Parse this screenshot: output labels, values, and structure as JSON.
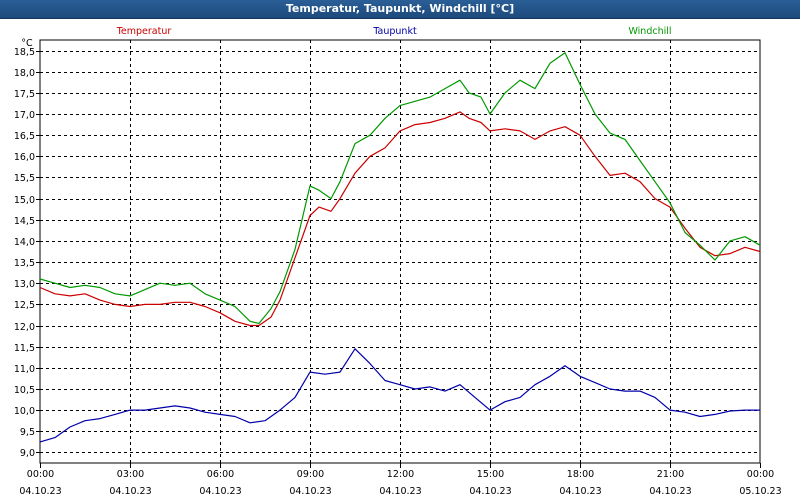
{
  "window": {
    "title": "Temperatur, Taupunkt, Windchill [°C]"
  },
  "chart_data": {
    "type": "line",
    "title": "Temperatur, Taupunkt, Windchill [°C]",
    "ylabel": "°C",
    "ylim": [
      8.75,
      18.75
    ],
    "y_ticks": [
      9.0,
      9.5,
      10.0,
      10.5,
      11.0,
      11.5,
      12.0,
      12.5,
      13.0,
      13.5,
      14.0,
      14.5,
      15.0,
      15.5,
      16.0,
      16.5,
      17.0,
      17.5,
      18.0,
      18.5
    ],
    "y_tick_labels": [
      "9,0",
      "9,5",
      "10,0",
      "10,5",
      "11,0",
      "11,5",
      "12,0",
      "12,5",
      "13,0",
      "13,5",
      "14,0",
      "14,5",
      "15,0",
      "15,5",
      "16,0",
      "16,5",
      "17,0",
      "17,5",
      "18,0",
      "18,5"
    ],
    "xlim": [
      0,
      24
    ],
    "x_ticks": [
      0,
      3,
      6,
      9,
      12,
      15,
      18,
      21,
      24
    ],
    "x_tick_labels": [
      {
        "time": "00:00",
        "date": "04.10.23"
      },
      {
        "time": "03:00",
        "date": "04.10.23"
      },
      {
        "time": "06:00",
        "date": "04.10.23"
      },
      {
        "time": "09:00",
        "date": "04.10.23"
      },
      {
        "time": "12:00",
        "date": "04.10.23"
      },
      {
        "time": "15:00",
        "date": "04.10.23"
      },
      {
        "time": "18:00",
        "date": "04.10.23"
      },
      {
        "time": "21:00",
        "date": "04.10.23"
      },
      {
        "time": "00:00",
        "date": "05.10.23"
      }
    ],
    "grid": true,
    "legend_position": "top",
    "series": [
      {
        "name": "Temperatur",
        "color": "#cc0000",
        "points": [
          [
            0,
            12.9
          ],
          [
            0.5,
            12.75
          ],
          [
            1,
            12.7
          ],
          [
            1.5,
            12.75
          ],
          [
            2,
            12.6
          ],
          [
            2.5,
            12.5
          ],
          [
            3,
            12.45
          ],
          [
            3.5,
            12.5
          ],
          [
            4,
            12.5
          ],
          [
            4.5,
            12.55
          ],
          [
            5,
            12.55
          ],
          [
            5.5,
            12.45
          ],
          [
            6,
            12.3
          ],
          [
            6.5,
            12.1
          ],
          [
            7,
            12.0
          ],
          [
            7.3,
            12.0
          ],
          [
            7.7,
            12.2
          ],
          [
            8,
            12.6
          ],
          [
            8.5,
            13.6
          ],
          [
            9,
            14.6
          ],
          [
            9.3,
            14.8
          ],
          [
            9.7,
            14.7
          ],
          [
            10,
            15.0
          ],
          [
            10.5,
            15.6
          ],
          [
            11,
            16.0
          ],
          [
            11.5,
            16.2
          ],
          [
            12,
            16.6
          ],
          [
            12.5,
            16.75
          ],
          [
            13,
            16.8
          ],
          [
            13.5,
            16.9
          ],
          [
            14,
            17.05
          ],
          [
            14.3,
            16.9
          ],
          [
            14.7,
            16.8
          ],
          [
            15,
            16.6
          ],
          [
            15.5,
            16.65
          ],
          [
            16,
            16.6
          ],
          [
            16.5,
            16.4
          ],
          [
            17,
            16.6
          ],
          [
            17.5,
            16.7
          ],
          [
            18,
            16.5
          ],
          [
            18.5,
            16.0
          ],
          [
            19,
            15.55
          ],
          [
            19.5,
            15.6
          ],
          [
            20,
            15.4
          ],
          [
            20.5,
            15.0
          ],
          [
            21,
            14.8
          ],
          [
            21.5,
            14.3
          ],
          [
            22,
            13.85
          ],
          [
            22.5,
            13.65
          ],
          [
            23,
            13.7
          ],
          [
            23.5,
            13.85
          ],
          [
            24,
            13.75
          ]
        ]
      },
      {
        "name": "Taupunkt",
        "color": "#0000aa",
        "points": [
          [
            0,
            9.25
          ],
          [
            0.5,
            9.35
          ],
          [
            1,
            9.6
          ],
          [
            1.5,
            9.75
          ],
          [
            2,
            9.8
          ],
          [
            2.5,
            9.9
          ],
          [
            3,
            10.0
          ],
          [
            3.5,
            10.0
          ],
          [
            4,
            10.05
          ],
          [
            4.5,
            10.1
          ],
          [
            5,
            10.05
          ],
          [
            5.5,
            9.95
          ],
          [
            6,
            9.9
          ],
          [
            6.5,
            9.85
          ],
          [
            7,
            9.7
          ],
          [
            7.5,
            9.75
          ],
          [
            8,
            10.0
          ],
          [
            8.5,
            10.3
          ],
          [
            9,
            10.9
          ],
          [
            9.5,
            10.85
          ],
          [
            10,
            10.9
          ],
          [
            10.5,
            11.45
          ],
          [
            11,
            11.1
          ],
          [
            11.5,
            10.7
          ],
          [
            12,
            10.6
          ],
          [
            12.5,
            10.5
          ],
          [
            13,
            10.55
          ],
          [
            13.5,
            10.45
          ],
          [
            14,
            10.6
          ],
          [
            14.5,
            10.3
          ],
          [
            15,
            10.0
          ],
          [
            15.5,
            10.2
          ],
          [
            16,
            10.3
          ],
          [
            16.5,
            10.6
          ],
          [
            17,
            10.8
          ],
          [
            17.5,
            11.05
          ],
          [
            18,
            10.8
          ],
          [
            18.5,
            10.65
          ],
          [
            19,
            10.5
          ],
          [
            19.5,
            10.45
          ],
          [
            20,
            10.45
          ],
          [
            20.5,
            10.3
          ],
          [
            21,
            10.0
          ],
          [
            21.5,
            9.95
          ],
          [
            22,
            9.85
          ],
          [
            22.5,
            9.9
          ],
          [
            23,
            9.98
          ],
          [
            23.5,
            10.0
          ],
          [
            24,
            10.0
          ]
        ]
      },
      {
        "name": "Windchill",
        "color": "#009900",
        "points": [
          [
            0,
            13.1
          ],
          [
            0.5,
            13.0
          ],
          [
            1,
            12.9
          ],
          [
            1.5,
            12.95
          ],
          [
            2,
            12.9
          ],
          [
            2.5,
            12.75
          ],
          [
            3,
            12.7
          ],
          [
            3.5,
            12.85
          ],
          [
            4,
            13.0
          ],
          [
            4.5,
            12.95
          ],
          [
            5,
            13.0
          ],
          [
            5.5,
            12.75
          ],
          [
            6,
            12.6
          ],
          [
            6.5,
            12.45
          ],
          [
            7,
            12.1
          ],
          [
            7.3,
            12.05
          ],
          [
            7.7,
            12.4
          ],
          [
            8,
            12.8
          ],
          [
            8.5,
            13.8
          ],
          [
            9,
            15.3
          ],
          [
            9.3,
            15.2
          ],
          [
            9.7,
            15.0
          ],
          [
            10,
            15.4
          ],
          [
            10.5,
            16.3
          ],
          [
            11,
            16.5
          ],
          [
            11.5,
            16.9
          ],
          [
            12,
            17.2
          ],
          [
            12.5,
            17.3
          ],
          [
            13,
            17.4
          ],
          [
            13.5,
            17.6
          ],
          [
            14,
            17.8
          ],
          [
            14.3,
            17.5
          ],
          [
            14.7,
            17.4
          ],
          [
            15,
            17.0
          ],
          [
            15.5,
            17.5
          ],
          [
            16,
            17.8
          ],
          [
            16.5,
            17.6
          ],
          [
            17,
            18.2
          ],
          [
            17.5,
            18.45
          ],
          [
            18,
            17.7
          ],
          [
            18.5,
            17.0
          ],
          [
            19,
            16.55
          ],
          [
            19.5,
            16.4
          ],
          [
            20,
            15.9
          ],
          [
            20.5,
            15.4
          ],
          [
            21,
            14.9
          ],
          [
            21.5,
            14.2
          ],
          [
            22,
            13.9
          ],
          [
            22.5,
            13.55
          ],
          [
            23,
            14.0
          ],
          [
            23.5,
            14.1
          ],
          [
            24,
            13.9
          ]
        ]
      }
    ]
  }
}
